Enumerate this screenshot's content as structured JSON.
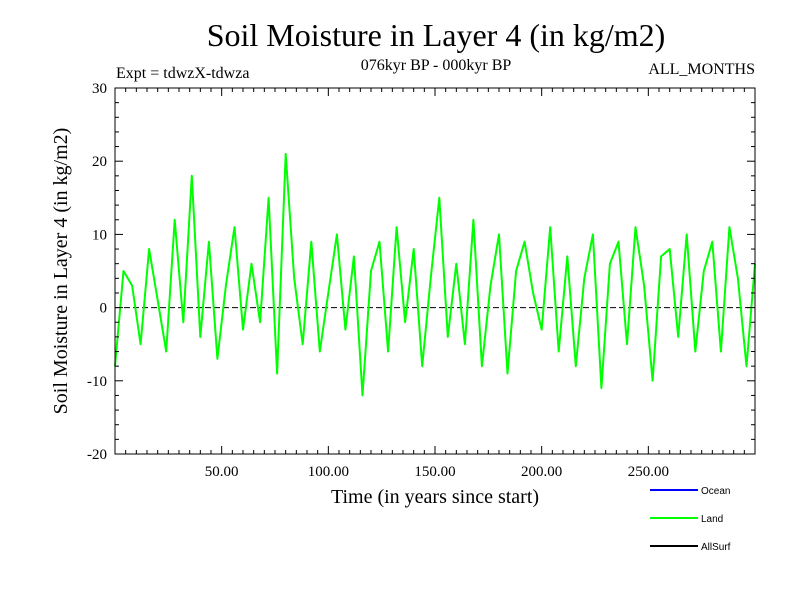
{
  "chart_data": {
    "type": "line",
    "title": "Soil Moisture in Layer 4 (in kg/m2)",
    "subtitle_left": "Expt = tdwzX-tdwza",
    "subtitle_center": "076kyr BP - 000kyr BP",
    "subtitle_right": "ALL_MONTHS",
    "xlabel": "Time (in years since start)",
    "ylabel": "Soil Moisture in Layer 4 (in kg/m2)",
    "xlim": [
      0,
      300
    ],
    "ylim": [
      -20,
      30
    ],
    "x_ticks": [
      50,
      100,
      150,
      200,
      250
    ],
    "x_tick_labels": [
      "50.00",
      "100.00",
      "150.00",
      "200.00",
      "250.00"
    ],
    "y_ticks": [
      -20,
      -10,
      0,
      10,
      20,
      30
    ],
    "y_tick_labels": [
      "-20",
      "-10",
      "0",
      "10",
      "20",
      "30"
    ],
    "zero_line": true,
    "grid": false,
    "legend_position": "bottom-right",
    "series": [
      {
        "name": "Ocean",
        "color": "#0000ff",
        "x": [],
        "values": []
      },
      {
        "name": "Land",
        "color": "#00ff00",
        "x": [
          0,
          4,
          8,
          12,
          16,
          20,
          24,
          28,
          32,
          36,
          40,
          44,
          48,
          52,
          56,
          60,
          64,
          68,
          72,
          76,
          80,
          84,
          88,
          92,
          96,
          100,
          104,
          108,
          112,
          116,
          120,
          124,
          128,
          132,
          136,
          140,
          144,
          148,
          152,
          156,
          160,
          164,
          168,
          172,
          176,
          180,
          184,
          188,
          192,
          196,
          200,
          204,
          208,
          212,
          216,
          220,
          224,
          228,
          232,
          236,
          240,
          244,
          248,
          252,
          256,
          260,
          264,
          268,
          272,
          276,
          280,
          284,
          288,
          292,
          296,
          300
        ],
        "values": [
          -8,
          5,
          3,
          -5,
          8,
          1,
          -6,
          12,
          -2,
          18,
          -4,
          9,
          -7,
          3,
          11,
          -3,
          6,
          -2,
          15,
          -9,
          21,
          4,
          -5,
          9,
          -6,
          2,
          10,
          -3,
          7,
          -12,
          5,
          9,
          -6,
          11,
          -2,
          8,
          -8,
          4,
          15,
          -4,
          6,
          -5,
          12,
          -8,
          3,
          10,
          -9,
          5,
          9,
          2,
          -3,
          11,
          -6,
          7,
          -8,
          4,
          10,
          -11,
          6,
          9,
          -5,
          11,
          3,
          -10,
          7,
          8,
          -4,
          10,
          -6,
          5,
          9,
          -6,
          11,
          4,
          -8,
          6
        ]
      },
      {
        "name": "AllSurf",
        "color": "#000000",
        "x": [],
        "values": []
      }
    ]
  }
}
